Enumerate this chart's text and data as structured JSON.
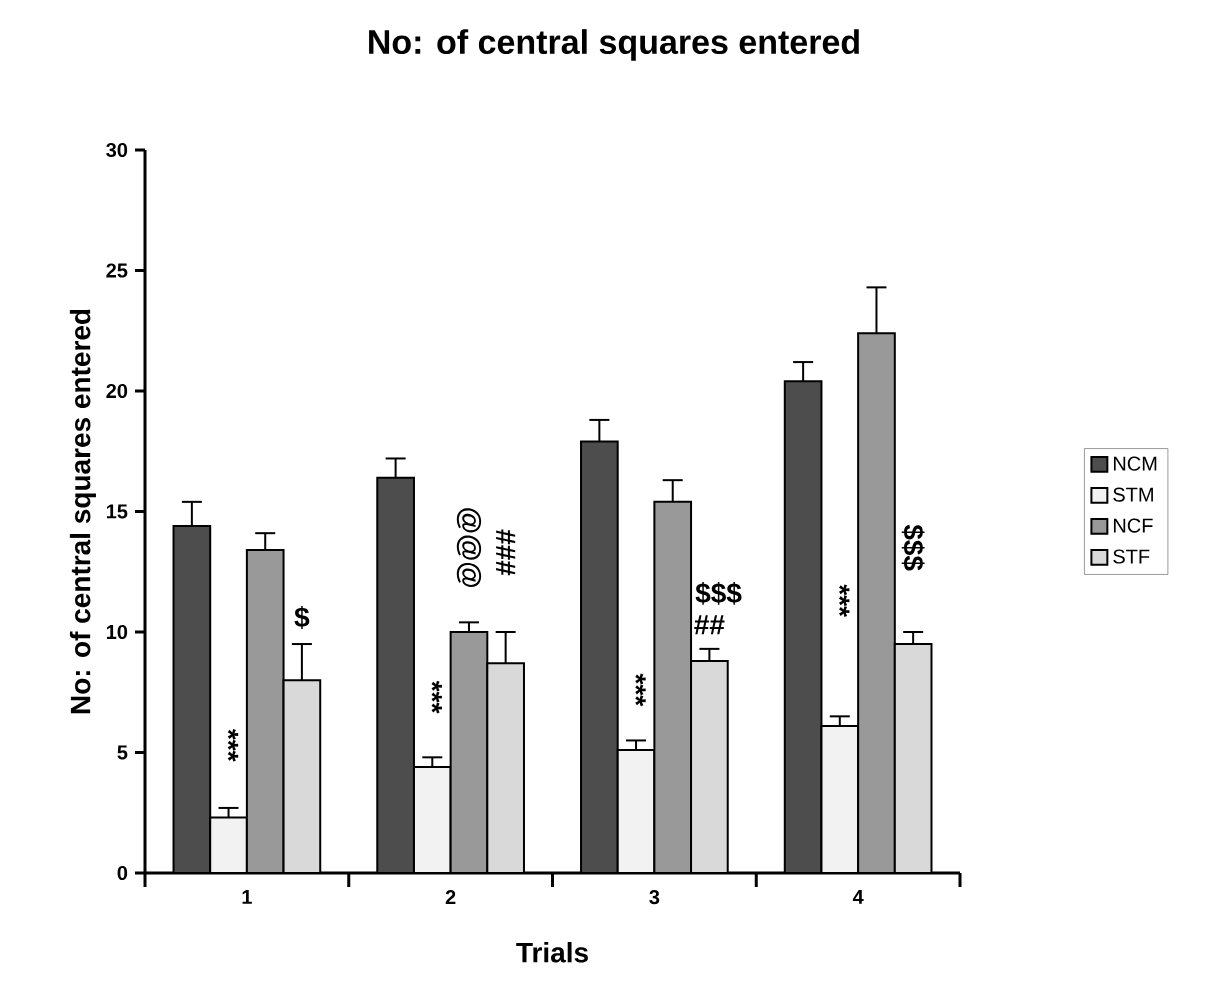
{
  "chart_data": {
    "type": "bar",
    "title": "No: of central squares entered",
    "xlabel": "Trials",
    "ylabel": "No: of central squares entered",
    "categories": [
      "1",
      "2",
      "3",
      "4"
    ],
    "series": [
      {
        "name": "NCM",
        "color": "#4d4d4d",
        "values": [
          14.4,
          16.4,
          17.9,
          20.4
        ],
        "errors": [
          1.0,
          0.8,
          0.9,
          0.8
        ]
      },
      {
        "name": "STM",
        "color": "#f2f2f2",
        "values": [
          2.3,
          4.4,
          5.1,
          6.1
        ],
        "errors": [
          0.4,
          0.4,
          0.4,
          0.4
        ]
      },
      {
        "name": "NCF",
        "color": "#999999",
        "values": [
          13.4,
          10.0,
          15.4,
          22.4
        ],
        "errors": [
          0.7,
          0.4,
          0.9,
          1.9
        ]
      },
      {
        "name": "STF",
        "color": "#d9d9d9",
        "values": [
          8.0,
          8.7,
          8.8,
          9.5
        ],
        "errors": [
          1.5,
          1.3,
          0.5,
          0.5
        ]
      }
    ],
    "ylim": [
      0,
      30
    ],
    "yticks": [
      0,
      5,
      10,
      15,
      20,
      25,
      30
    ],
    "grid": false,
    "legend": "right",
    "annotations": [
      "***",
      "$",
      "***",
      "@@@",
      "###",
      "***",
      "$$$",
      "##",
      "***",
      "$$$"
    ]
  }
}
